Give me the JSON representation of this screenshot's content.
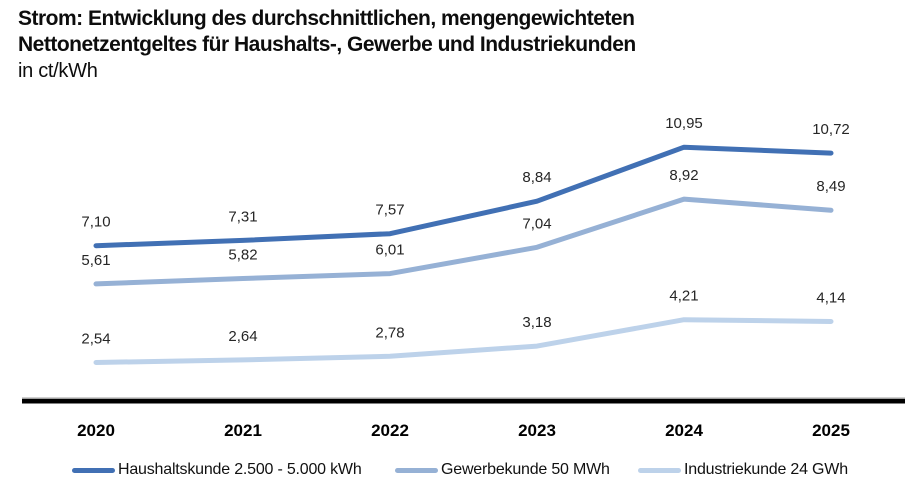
{
  "header": {
    "title_line1": "Strom: Entwicklung des durchschnittlichen, mengengewichteten",
    "title_line2": "Nettonetzentgeltes für Haushalts-, Gewerbe und Industriekunden",
    "unit_line": "in ct/kWh"
  },
  "chart_data": {
    "type": "line",
    "title": "Strom: Entwicklung des durchschnittlichen, mengengewichteten Nettonetzentgeltes für Haushalts-, Gewerbe und Industriekunden",
    "ylabel": "ct/kWh",
    "categories": [
      "2020",
      "2021",
      "2022",
      "2023",
      "2024",
      "2025"
    ],
    "series": [
      {
        "name": "Haushaltskunde 2.500 - 5.000 kWh",
        "color": "#4170B4",
        "values": [
          7.1,
          7.31,
          7.57,
          8.84,
          10.95,
          10.72
        ],
        "labels": [
          "7,10",
          "7,31",
          "7,57",
          "8,84",
          "10,95",
          "10,72"
        ]
      },
      {
        "name": "Gewerbekunde 50 MWh",
        "color": "#96B1D5",
        "values": [
          5.61,
          5.82,
          6.01,
          7.04,
          8.92,
          8.49
        ],
        "labels": [
          "5,61",
          "5,82",
          "6,01",
          "7,04",
          "8,92",
          "8,49"
        ]
      },
      {
        "name": "Industriekunde 24 GWh",
        "color": "#BDD2EA",
        "values": [
          2.54,
          2.64,
          2.78,
          3.18,
          4.21,
          4.14
        ],
        "labels": [
          "2,54",
          "2,64",
          "2,78",
          "3,18",
          "4,21",
          "4,14"
        ]
      }
    ],
    "ylim": [
      1.0,
      12.8
    ],
    "grid": false,
    "legend_position": "bottom",
    "axis_color": "#000000",
    "label_color": "#262626"
  }
}
